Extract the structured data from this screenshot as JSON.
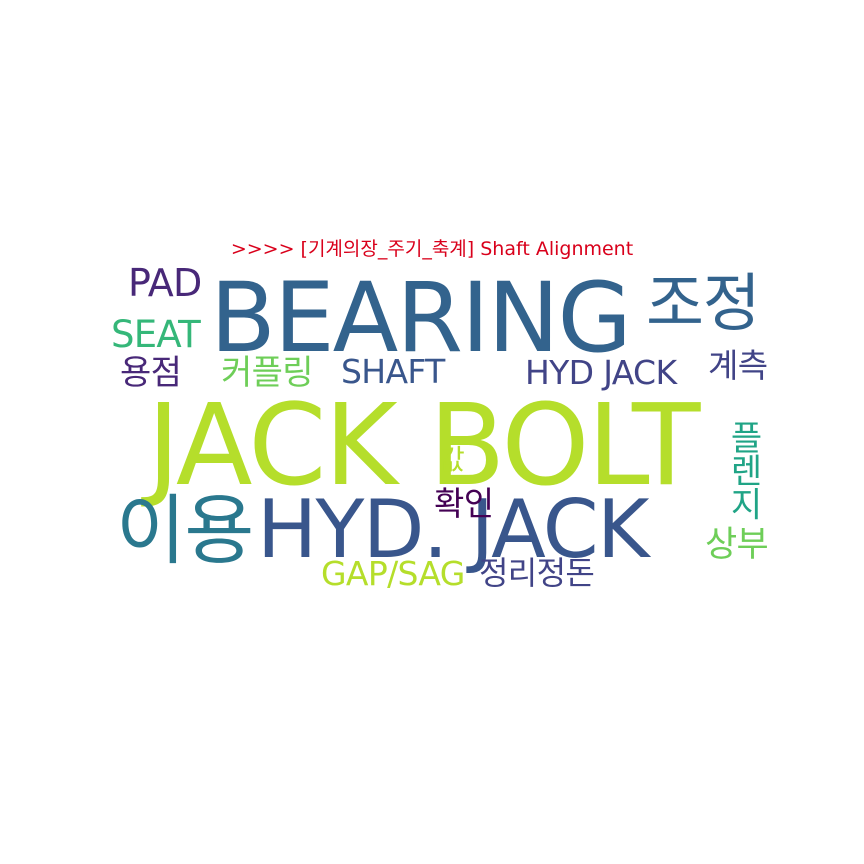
{
  "title": {
    "text": ">>>> [기계의장_주기_축계] Shaft Alignment",
    "color": "#d9001b"
  },
  "words": [
    {
      "id": "jack-bolt",
      "text": "JACK BOLT",
      "color": "#b5de2b"
    },
    {
      "id": "bearing",
      "text": "BEARING",
      "color": "#33638d"
    },
    {
      "id": "hyd-jack-dot",
      "text": "HYD. JACK",
      "color": "#39568c"
    },
    {
      "id": "iyong",
      "text": "이용",
      "color": "#2a788e"
    },
    {
      "id": "jojeong",
      "text": "조정",
      "color": "#33638d"
    },
    {
      "id": "pad",
      "text": "PAD",
      "color": "#482878"
    },
    {
      "id": "seat",
      "text": "SEAT",
      "color": "#35b779"
    },
    {
      "id": "yongjeom",
      "text": "용점",
      "color": "#482878"
    },
    {
      "id": "coupling",
      "text": "커플링",
      "color": "#6ece58"
    },
    {
      "id": "shaft",
      "text": "SHAFT",
      "color": "#39568c"
    },
    {
      "id": "hyd-jack",
      "text": "HYD JACK",
      "color": "#414487"
    },
    {
      "id": "gyecheuk",
      "text": "계측",
      "color": "#414487"
    },
    {
      "id": "flange",
      "text": "플렌지",
      "color": "#20a486"
    },
    {
      "id": "gap",
      "text": "값",
      "color": "#b5de2b"
    },
    {
      "id": "hwagin",
      "text": "확인",
      "color": "#440154"
    },
    {
      "id": "sangbu",
      "text": "상부",
      "color": "#6ece58"
    },
    {
      "id": "gap-sag",
      "text": "GAP/SAG",
      "color": "#b5de2b"
    },
    {
      "id": "jeongri",
      "text": "정리정돈",
      "color": "#414487"
    }
  ]
}
